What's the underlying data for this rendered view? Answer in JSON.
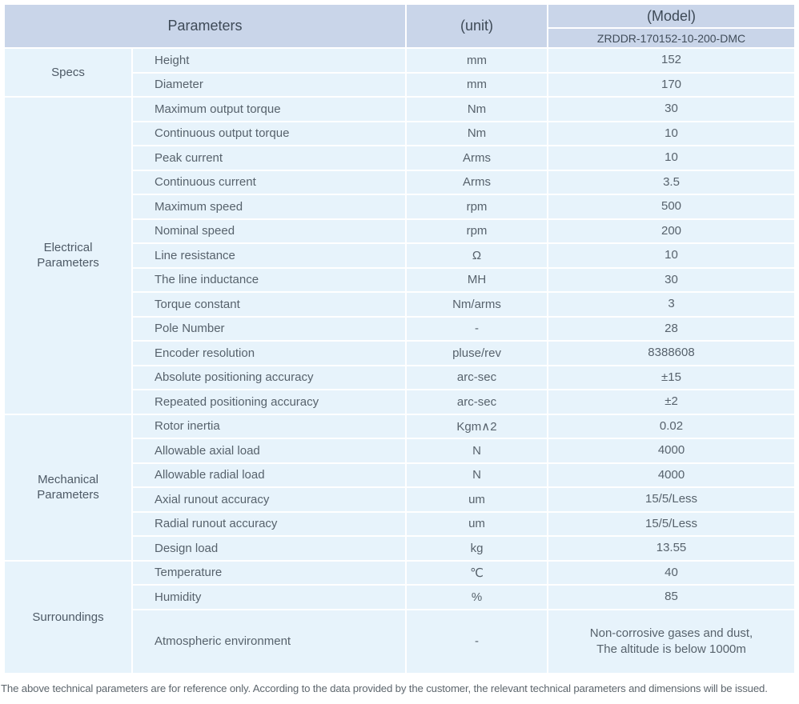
{
  "table": {
    "header": {
      "parameters_label": "Parameters",
      "unit_label": "(unit)",
      "model_label": "(Model)",
      "model_value": "ZRDDR-170152-10-200-DMC"
    },
    "sections": [
      {
        "group": "Specs",
        "rows": [
          {
            "name": "Height",
            "unit": "mm",
            "value": "152"
          },
          {
            "name": "Diameter",
            "unit": "mm",
            "value": "170"
          }
        ]
      },
      {
        "group": "Electrical Parameters",
        "rows": [
          {
            "name": "Maximum output torque",
            "unit": "Nm",
            "value": "30"
          },
          {
            "name": "Continuous output torque",
            "unit": "Nm",
            "value": "10"
          },
          {
            "name": "Peak current",
            "unit": "Arms",
            "value": "10"
          },
          {
            "name": "Continuous current",
            "unit": "Arms",
            "value": "3.5"
          },
          {
            "name": "Maximum speed",
            "unit": "rpm",
            "value": "500"
          },
          {
            "name": "Nominal speed",
            "unit": "rpm",
            "value": "200"
          },
          {
            "name": "Line resistance",
            "unit": "Ω",
            "value": "10"
          },
          {
            "name": "The line inductance",
            "unit": "MH",
            "value": "30"
          },
          {
            "name": "Torque constant",
            "unit": "Nm/arms",
            "value": "3"
          },
          {
            "name": "Pole Number",
            "unit": "-",
            "value": "28"
          },
          {
            "name": "Encoder resolution",
            "unit": "pluse/rev",
            "value": "8388608"
          },
          {
            "name": "Absolute positioning accuracy",
            "unit": "arc-sec",
            "value": "±15"
          },
          {
            "name": "Repeated positioning accuracy",
            "unit": "arc-sec",
            "value": "±2"
          }
        ]
      },
      {
        "group": "Mechanical Parameters",
        "rows": [
          {
            "name": "Rotor inertia",
            "unit": "Kgm∧2",
            "value": "0.02"
          },
          {
            "name": "Allowable axial load",
            "unit": "N",
            "value": "4000"
          },
          {
            "name": "Allowable radial load",
            "unit": "N",
            "value": "4000"
          },
          {
            "name": "Axial runout accuracy",
            "unit": "um",
            "value": "15/5/Less"
          },
          {
            "name": "Radial runout accuracy",
            "unit": "um",
            "value": "15/5/Less"
          },
          {
            "name": "Design load",
            "unit": "kg",
            "value": "13.55"
          }
        ]
      },
      {
        "group": "Surroundings",
        "rows": [
          {
            "name": "Temperature",
            "unit": "℃",
            "value": "40"
          },
          {
            "name": "Humidity",
            "unit": "%",
            "value": "85"
          },
          {
            "name": "Atmospheric environment",
            "unit": "-",
            "value": "Non-corrosive gases and dust,\nThe altitude is below 1000m"
          }
        ]
      }
    ],
    "footnote": "The above technical parameters are for reference only. According to the data provided by the customer, the relevant technical parameters and dimensions will be issued."
  },
  "colors": {
    "header_bg": "#c9d5e9",
    "body_bg": "#e7f3fb",
    "separator": "#ffffff",
    "header_text": "#3e4a57",
    "body_text": "#57626c"
  }
}
